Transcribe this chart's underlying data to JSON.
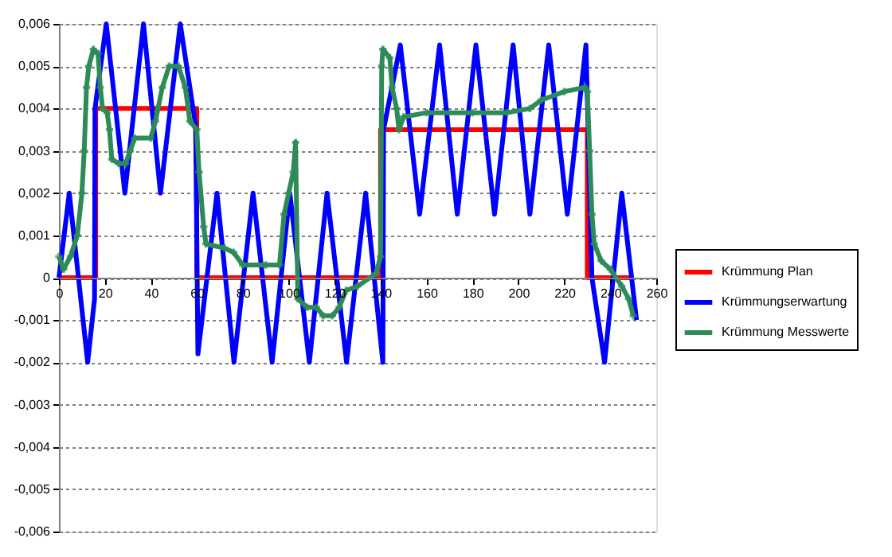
{
  "chart_data": {
    "type": "line",
    "xlim": [
      0,
      260
    ],
    "ylim": [
      -0.006,
      0.006
    ],
    "xticks": [
      0,
      20,
      40,
      60,
      80,
      100,
      120,
      140,
      160,
      180,
      200,
      220,
      240,
      260
    ],
    "yticks": [
      {
        "value": -0.006,
        "label": "-0,006"
      },
      {
        "value": -0.005,
        "label": "-0,005"
      },
      {
        "value": -0.004,
        "label": "-0,004"
      },
      {
        "value": -0.003,
        "label": "-0,003"
      },
      {
        "value": -0.002,
        "label": "-0,002"
      },
      {
        "value": -0.001,
        "label": "-0,001"
      },
      {
        "value": 0,
        "label": "0"
      },
      {
        "value": 0.001,
        "label": "0,001"
      },
      {
        "value": 0.002,
        "label": "0,002"
      },
      {
        "value": 0.003,
        "label": "0,003"
      },
      {
        "value": 0.004,
        "label": "0,004"
      },
      {
        "value": 0.005,
        "label": "0,005"
      },
      {
        "value": 0.006,
        "label": "0,006"
      }
    ],
    "grid": "y",
    "legend": "right",
    "line_style": "solid",
    "series": [
      {
        "name": "Krümmung Plan",
        "color": "#ff0000",
        "marker": "none",
        "x": [
          0,
          16,
          16,
          60,
          60,
          140,
          140,
          230,
          230,
          250
        ],
        "values": [
          0,
          0,
          0.004,
          0.004,
          0,
          0,
          0.0035,
          0.0035,
          0,
          0
        ]
      },
      {
        "name": "Krümmungserwartung",
        "color": "#0000ff",
        "marker": "none",
        "x": [
          0,
          4.5,
          12.5,
          15.5,
          15.7,
          20.6,
          28.7,
          36.8,
          44.2,
          52.8,
          59.5,
          60.5,
          68.8,
          76.2,
          84.5,
          92.8,
          100.5,
          109,
          116.7,
          125.2,
          133.5,
          141,
          141.3,
          148.6,
          157,
          165.7,
          173.4,
          181.5,
          189.6,
          197.7,
          205,
          213.2,
          221.3,
          229.4,
          232,
          237.5,
          245,
          251.4
        ],
        "values": [
          0,
          0.002,
          -0.002,
          -0.0005,
          0.004,
          0.006,
          0.002,
          0.006,
          0.002,
          0.006,
          0.0036,
          -0.0018,
          0.002,
          -0.002,
          0.002,
          -0.002,
          0.002,
          -0.002,
          0.002,
          -0.002,
          0.002,
          -0.002,
          0.0035,
          0.0055,
          0.0015,
          0.0055,
          0.0015,
          0.0055,
          0.0015,
          0.0055,
          0.0015,
          0.0055,
          0.0015,
          0.0055,
          0,
          -0.002,
          0.002,
          -0.001
        ]
      },
      {
        "name": "Krümmung Messwerte",
        "color": "#2e8b57",
        "marker": "cross",
        "x": [
          0,
          2,
          5,
          8,
          10,
          11,
          12,
          13,
          15,
          17,
          18,
          19,
          21,
          22,
          23,
          26,
          29,
          31,
          33,
          40,
          42,
          45,
          48,
          52,
          55,
          57,
          60,
          61,
          63,
          64,
          72,
          76,
          80,
          90,
          96,
          98,
          100,
          102,
          103,
          104,
          108,
          112,
          115,
          119,
          122,
          125,
          130,
          138,
          140,
          140.5,
          141,
          144,
          145,
          147,
          148,
          150,
          160,
          180,
          195,
          205,
          210,
          220,
          229,
          230,
          231,
          232,
          233,
          236,
          240,
          245,
          248,
          250
        ],
        "values": [
          0.0005,
          0.0002,
          0.0005,
          0.001,
          0.002,
          0.003,
          0.0045,
          0.005,
          0.0054,
          0.0053,
          0.0045,
          0.004,
          0.0039,
          0.0035,
          0.0028,
          0.0027,
          0.0027,
          0.003,
          0.0033,
          0.0033,
          0.0037,
          0.0045,
          0.005,
          0.005,
          0.0045,
          0.0037,
          0.0035,
          0.0025,
          0.0012,
          0.0008,
          0.0007,
          0.0006,
          0.0003,
          0.0003,
          0.0003,
          0.0015,
          0.002,
          0.0025,
          0.0032,
          -0.0005,
          -0.0007,
          -0.0007,
          -0.0009,
          -0.0009,
          -0.0007,
          -0.0003,
          -0.0002,
          0.0001,
          0.0005,
          0.005,
          0.0054,
          0.0052,
          0.0045,
          0.004,
          0.0035,
          0.0038,
          0.0039,
          0.0039,
          0.0039,
          0.004,
          0.0042,
          0.0044,
          0.0045,
          0.0044,
          0.003,
          0.0015,
          0.0008,
          0.0004,
          0.0002,
          -0.0002,
          -0.0005,
          -0.0009
        ]
      }
    ]
  }
}
